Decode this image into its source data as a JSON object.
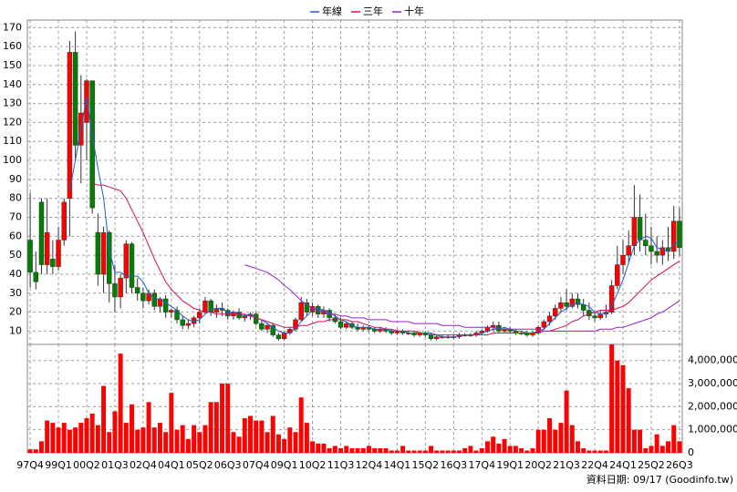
{
  "chart_data": {
    "type": "candlestick",
    "legend_position": "top",
    "grid": true,
    "up_color": "#ff0000",
    "down_color": "#008000",
    "wick_color": "#333333",
    "footnote": "資料日期: 09/17  (Goodinfo.tw)",
    "categories": [
      "97Q4",
      null,
      null,
      null,
      null,
      "99Q1",
      null,
      null,
      null,
      null,
      "00Q2",
      null,
      null,
      null,
      null,
      "01Q3",
      null,
      null,
      null,
      null,
      "02Q4",
      null,
      null,
      null,
      null,
      "04Q1",
      null,
      null,
      null,
      null,
      "05Q2",
      null,
      null,
      null,
      null,
      "06Q3",
      null,
      null,
      null,
      null,
      "07Q4",
      null,
      null,
      null,
      null,
      "09Q1",
      null,
      null,
      null,
      null,
      "10Q2",
      null,
      null,
      null,
      null,
      "11Q3",
      null,
      null,
      null,
      null,
      "12Q4",
      null,
      null,
      null,
      null,
      "14Q1",
      null,
      null,
      null,
      null,
      "15Q2",
      null,
      null,
      null,
      null,
      "16Q3",
      null,
      null,
      null,
      null,
      "17Q4",
      null,
      null,
      null,
      null,
      "19Q1",
      null,
      null,
      null,
      null,
      "20Q2",
      null,
      null,
      null,
      null,
      "21Q3",
      null,
      null,
      null,
      null,
      "22Q4",
      null,
      null,
      null,
      null,
      "24Q1",
      null,
      null,
      null,
      null,
      "25Q2",
      null,
      null,
      null,
      null,
      "26Q3"
    ],
    "ohlc": {
      "open": [
        58,
        41,
        78,
        45,
        48,
        44,
        58,
        80,
        157,
        108,
        120,
        142,
        62,
        40,
        62,
        35,
        28,
        38,
        56,
        33,
        30,
        26,
        30,
        23,
        27,
        20,
        21,
        16,
        13,
        14,
        17,
        20,
        26,
        20,
        22,
        21,
        18,
        20,
        17,
        18,
        19,
        14,
        11,
        13,
        8,
        6,
        9,
        11,
        16,
        25,
        20,
        23,
        19,
        21,
        17,
        15,
        12,
        14,
        12,
        11,
        12,
        11,
        10,
        11,
        10,
        9,
        10,
        9,
        9,
        8,
        9,
        8,
        6,
        7,
        7,
        7,
        7,
        8,
        8,
        8,
        9,
        10,
        12,
        13,
        10,
        11,
        10,
        9,
        9,
        8,
        9,
        12,
        15,
        18,
        22,
        25,
        23,
        27,
        24,
        21,
        18,
        17,
        19,
        20,
        34,
        45,
        50,
        55,
        70,
        58,
        55,
        52,
        50,
        54,
        52,
        68
      ],
      "high": [
        83,
        52,
        80,
        80,
        58,
        65,
        80,
        163,
        168,
        145,
        143,
        142,
        72,
        65,
        63,
        45,
        40,
        58,
        57,
        38,
        33,
        32,
        32,
        28,
        29,
        22,
        23,
        18,
        16,
        18,
        22,
        28,
        27,
        24,
        25,
        22,
        21,
        22,
        19,
        20,
        20,
        16,
        14,
        14,
        9,
        10,
        12,
        17,
        28,
        27,
        25,
        24,
        23,
        22,
        19,
        17,
        15,
        15,
        14,
        13,
        13,
        12,
        12,
        12,
        11,
        11,
        11,
        10,
        10,
        10,
        10,
        9,
        8,
        8,
        8,
        8,
        9,
        9,
        9,
        10,
        11,
        13,
        15,
        15,
        12,
        12,
        11,
        10,
        10,
        10,
        13,
        16,
        20,
        24,
        28,
        32,
        30,
        30,
        27,
        25,
        20,
        21,
        24,
        37,
        55,
        58,
        63,
        87,
        82,
        72,
        65,
        60,
        58,
        65,
        76,
        75
      ],
      "low": [
        33,
        32,
        40,
        40,
        40,
        42,
        55,
        60,
        100,
        88,
        100,
        72,
        34,
        30,
        25,
        20,
        22,
        30,
        30,
        26,
        22,
        24,
        21,
        20,
        17,
        17,
        14,
        11,
        11,
        12,
        14,
        19,
        18,
        17,
        18,
        16,
        16,
        16,
        15,
        16,
        13,
        10,
        9,
        7,
        5,
        5,
        8,
        10,
        15,
        18,
        18,
        17,
        17,
        15,
        14,
        11,
        11,
        11,
        10,
        10,
        10,
        9,
        9,
        9,
        8,
        8,
        8,
        8,
        7,
        7,
        7,
        5,
        5,
        6,
        6,
        6,
        6,
        7,
        7,
        7,
        8,
        9,
        10,
        9,
        9,
        9,
        8,
        8,
        7,
        7,
        8,
        11,
        13,
        16,
        20,
        21,
        22,
        22,
        18,
        16,
        15,
        16,
        17,
        19,
        32,
        40,
        46,
        50,
        52,
        50,
        45,
        46,
        45,
        47,
        48,
        50
      ],
      "close": [
        41,
        36,
        45,
        62,
        44,
        58,
        78,
        157,
        108,
        125,
        142,
        75,
        40,
        62,
        35,
        28,
        38,
        56,
        33,
        30,
        26,
        30,
        23,
        27,
        20,
        21,
        16,
        13,
        14,
        17,
        20,
        26,
        20,
        22,
        21,
        18,
        20,
        17,
        18,
        19,
        14,
        11,
        13,
        8,
        6,
        9,
        11,
        16,
        25,
        20,
        23,
        19,
        21,
        17,
        15,
        12,
        14,
        12,
        11,
        12,
        11,
        10,
        11,
        10,
        9,
        10,
        9,
        9,
        8,
        9,
        8,
        6,
        7,
        7,
        7,
        7,
        8,
        8,
        8,
        9,
        10,
        12,
        13,
        10,
        11,
        10,
        9,
        9,
        8,
        9,
        12,
        15,
        18,
        22,
        25,
        23,
        27,
        24,
        21,
        18,
        17,
        19,
        20,
        34,
        45,
        50,
        55,
        70,
        58,
        55,
        52,
        50,
        54,
        52,
        68,
        54
      ]
    },
    "lines": [
      {
        "name": "年線",
        "color": "#1f5fd0",
        "values": [
          null,
          null,
          null,
          null,
          null,
          null,
          null,
          84,
          100,
          117,
          133,
          113,
          96,
          80,
          53,
          41,
          41,
          39,
          39,
          39,
          36,
          30,
          27,
          27,
          25,
          23,
          21,
          18,
          16,
          15,
          16,
          19,
          21,
          22,
          22,
          20,
          20,
          19,
          18,
          19,
          17,
          16,
          14,
          12,
          10,
          9,
          9,
          11,
          15,
          18,
          21,
          22,
          21,
          20,
          18,
          16,
          15,
          13,
          12,
          12,
          12,
          11,
          11,
          11,
          10,
          10,
          10,
          9,
          9,
          9,
          9,
          8,
          8,
          7,
          7,
          7,
          7,
          8,
          8,
          8,
          9,
          10,
          11,
          11,
          12,
          11,
          10,
          10,
          9,
          9,
          10,
          11,
          14,
          17,
          20,
          22,
          24,
          25,
          24,
          23,
          20,
          19,
          19,
          23,
          30,
          37,
          46,
          55,
          58,
          60,
          59,
          54,
          53,
          52,
          56,
          57
        ]
      },
      {
        "name": "三年",
        "color": "#d0105a",
        "values": [
          null,
          null,
          null,
          null,
          null,
          null,
          null,
          null,
          null,
          null,
          null,
          88,
          87,
          87,
          86,
          85,
          84,
          80,
          74,
          68,
          62,
          55,
          48,
          42,
          36,
          32,
          29,
          26,
          24,
          22,
          21,
          20,
          20,
          19,
          19,
          19,
          19,
          19,
          19,
          18,
          17,
          16,
          15,
          14,
          13,
          12,
          12,
          12,
          13,
          13,
          14,
          15,
          15,
          16,
          16,
          16,
          16,
          15,
          15,
          14,
          13,
          12,
          12,
          11,
          11,
          10,
          10,
          10,
          10,
          9,
          9,
          9,
          8,
          8,
          8,
          8,
          8,
          8,
          8,
          8,
          8,
          8,
          9,
          9,
          9,
          9,
          9,
          9,
          9,
          9,
          9,
          10,
          10,
          11,
          12,
          13,
          15,
          16,
          18,
          19,
          20,
          21,
          21,
          21,
          22,
          23,
          25,
          28,
          31,
          34,
          37,
          39,
          41,
          43,
          45,
          47
        ]
      },
      {
        "name": "十年",
        "color": "#9a20c8",
        "values": [
          null,
          null,
          null,
          null,
          null,
          null,
          null,
          null,
          null,
          null,
          null,
          null,
          null,
          null,
          null,
          null,
          null,
          null,
          null,
          null,
          null,
          null,
          null,
          null,
          null,
          null,
          null,
          null,
          null,
          null,
          null,
          null,
          null,
          null,
          null,
          null,
          null,
          null,
          45,
          44,
          43,
          42,
          41,
          39,
          37,
          34,
          32,
          29,
          26,
          24,
          22,
          21,
          20,
          19,
          19,
          18,
          18,
          17,
          17,
          17,
          16,
          16,
          16,
          16,
          15,
          15,
          15,
          15,
          14,
          14,
          14,
          14,
          14,
          13,
          13,
          13,
          13,
          12,
          12,
          12,
          12,
          12,
          12,
          11,
          11,
          11,
          11,
          11,
          11,
          11,
          11,
          10,
          10,
          10,
          10,
          10,
          10,
          10,
          10,
          10,
          10,
          11,
          11,
          11,
          12,
          12,
          13,
          14,
          15,
          16,
          17,
          19,
          20,
          22,
          24,
          26
        ]
      }
    ],
    "volume": {
      "color": "#ff0000",
      "values": [
        150000,
        150000,
        500000,
        1400000,
        1300000,
        1100000,
        1300000,
        1000000,
        1100000,
        1300000,
        1500000,
        1700000,
        1200000,
        2900000,
        900000,
        1800000,
        4300000,
        1300000,
        2100000,
        1000000,
        1100000,
        2200000,
        1100000,
        1300000,
        900000,
        2600000,
        1000000,
        1200000,
        600000,
        1200000,
        900000,
        1200000,
        2200000,
        2200000,
        3000000,
        3000000,
        900000,
        700000,
        1500000,
        1600000,
        1400000,
        1400000,
        900000,
        1600000,
        800000,
        600000,
        1100000,
        900000,
        2400000,
        1300000,
        500000,
        400000,
        400000,
        200000,
        300000,
        200000,
        300000,
        200000,
        200000,
        200000,
        300000,
        200000,
        200000,
        200000,
        100000,
        100000,
        300000,
        100000,
        100000,
        100000,
        100000,
        300000,
        100000,
        100000,
        100000,
        100000,
        100000,
        200000,
        300000,
        100000,
        200000,
        500000,
        700000,
        400000,
        600000,
        300000,
        300000,
        200000,
        100000,
        200000,
        1000000,
        1000000,
        1500000,
        1000000,
        1300000,
        2700000,
        1200000,
        500000,
        200000,
        100000,
        100000,
        100000,
        100000,
        4700000,
        4000000,
        3800000,
        2800000,
        1000000,
        1000000,
        200000,
        300000,
        800000,
        300000,
        500000,
        1200000,
        500000
      ]
    },
    "ylim": [
      3,
      174
    ],
    "yticks": [
      10,
      20,
      30,
      40,
      50,
      60,
      70,
      80,
      90,
      100,
      110,
      120,
      130,
      140,
      150,
      160,
      170
    ],
    "volume_ylim": [
      0,
      4700000
    ],
    "volume_yticks": [
      0,
      {
        "value": 1000000,
        "label": "1,000,000"
      },
      {
        "value": 2000000,
        "label": "2,000,000"
      },
      {
        "value": 3000000,
        "label": "3,000,000"
      },
      {
        "value": 4000000,
        "label": "4,000,000"
      }
    ]
  }
}
